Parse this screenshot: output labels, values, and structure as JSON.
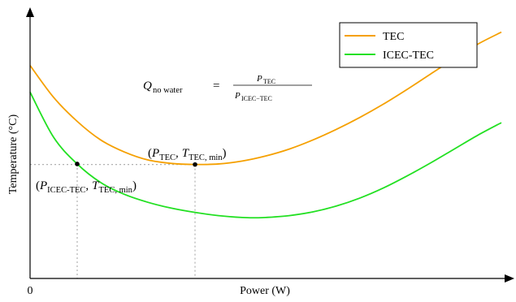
{
  "chart_data": {
    "type": "line",
    "title": "",
    "xlabel": "Power (W)",
    "ylabel": "Temperature (°C)",
    "x_tick_labels": [
      "0"
    ],
    "xlim": [
      0,
      100
    ],
    "ylim": [
      0,
      100
    ],
    "grid": false,
    "legend_position": "top-right",
    "series": [
      {
        "name": "TEC",
        "color": "#f5a000",
        "x": [
          0,
          5,
          10,
          15,
          20,
          25,
          30,
          35,
          40,
          45,
          50,
          55,
          60,
          65,
          70,
          75,
          80,
          85,
          90,
          95,
          100
        ],
        "y": [
          80,
          68,
          59,
          52,
          47.5,
          44.5,
          43.2,
          42.8,
          43.0,
          44.1,
          46.0,
          48.6,
          52.0,
          56.0,
          60.5,
          65.5,
          71.0,
          76.8,
          82.5,
          88.0,
          92.5
        ]
      },
      {
        "name": "ICEC-TEC",
        "color": "#22e022",
        "x": [
          0,
          5,
          10,
          15,
          20,
          25,
          30,
          35,
          40,
          45,
          48,
          50,
          55,
          60,
          65,
          70,
          75,
          80,
          85,
          90,
          95,
          100
        ],
        "y": [
          70,
          53,
          43,
          36,
          31.6,
          28.6,
          26.4,
          24.8,
          23.6,
          22.9,
          22.8,
          22.9,
          23.6,
          25.0,
          27.2,
          30.2,
          34.0,
          38.5,
          43.4,
          48.6,
          53.8,
          58.5
        ]
      }
    ],
    "annotations": {
      "formula": {
        "lhs": "Q",
        "lhs_sub": "no water",
        "eq": "=",
        "num": "P",
        "num_sub": "TEC",
        "den": "P",
        "den_sub": "ICEC−TEC"
      },
      "tec_min": {
        "x": 35,
        "y": 42.8,
        "open": "(",
        "p": "P",
        "p_sub": "TEC",
        "comma": ",",
        "t": "T",
        "t_sub": "TEC, min",
        "close": ")"
      },
      "icec_point": {
        "x": 10,
        "y": 43,
        "open": "(",
        "p": "P",
        "p_sub": "ICEC-TEC",
        "comma": ",",
        "t": "T",
        "t_sub": "TEC, min",
        "close": ")"
      }
    },
    "guide_color": "#b0b0b0"
  }
}
